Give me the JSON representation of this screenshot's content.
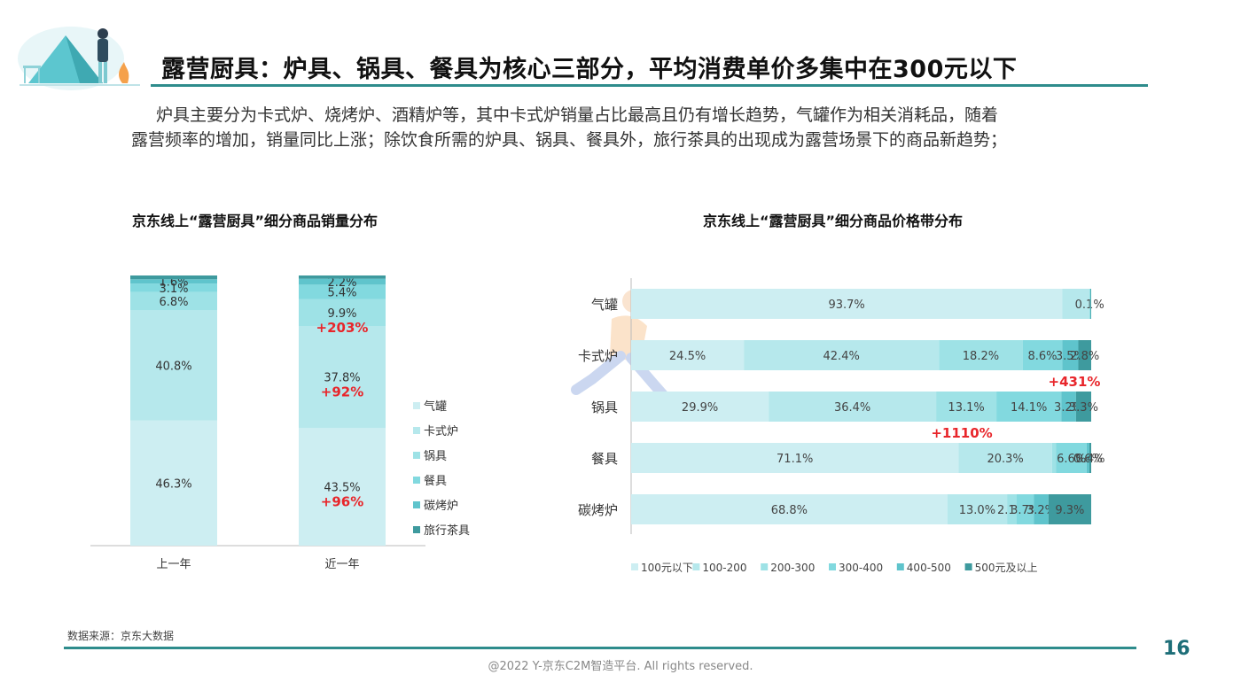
{
  "header": {
    "title": "露营厨具：炉具、锅具、餐具为核心三部分，平均消费单价多集中在300元以下",
    "paragraph_line1": "炉具主要分为卡式炉、烧烤炉、酒精炉等，其中卡式炉销量占比最高且仍有增长趋势，气罐作为相关消耗品，随着",
    "paragraph_line2": "露营频率的增加，销量同比上涨；除饮食所需的炉具、锅具、餐具外，旅行茶具的出现成为露营场景下的商品新趋势；"
  },
  "colors": {
    "accent": "#2e8c8c",
    "highlight_red": "#e8262b",
    "segments": [
      "#cdeef2",
      "#b6e8ec",
      "#9ee2e6",
      "#82d9df",
      "#5fc4cc",
      "#3e9a9e"
    ]
  },
  "footer": {
    "source": "数据来源：京东大数据",
    "copyright": "@2022 Y-京东C2M智造平台. All rights reserved.",
    "page_number": "16"
  },
  "chart_data": [
    {
      "type": "bar",
      "stacked": true,
      "orientation": "vertical",
      "title": "京东线上“露营厨具”细分商品销量分布",
      "categories": [
        "上一年",
        "近一年"
      ],
      "ylim": [
        0,
        100
      ],
      "series": [
        {
          "name": "气罐",
          "values": [
            46.3,
            43.5
          ]
        },
        {
          "name": "卡式炉",
          "values": [
            40.8,
            37.8
          ]
        },
        {
          "name": "锅具",
          "values": [
            6.8,
            9.9
          ]
        },
        {
          "name": "餐具",
          "values": [
            3.1,
            5.4
          ]
        },
        {
          "name": "碳烤炉",
          "values": [
            1.6,
            2.2
          ]
        },
        {
          "name": "旅行茶具",
          "values": [
            1.4,
            1.2
          ]
        }
      ],
      "data_labels": [
        [
          "46.3%",
          "40.8%",
          "6.8%",
          "3.1%",
          "1.6%"
        ],
        [
          "43.5%",
          "37.8%",
          "9.9%",
          "5.4%",
          "2.2%"
        ]
      ],
      "annotations": [
        {
          "category": "近一年",
          "series": "气罐",
          "text": "+96%"
        },
        {
          "category": "近一年",
          "series": "卡式炉",
          "text": "+92%"
        },
        {
          "category": "近一年",
          "series": "锅具",
          "text": "+203%"
        }
      ],
      "legend_position": "right"
    },
    {
      "type": "bar",
      "stacked": true,
      "orientation": "horizontal",
      "title": "京东线上“露营厨具”细分商品价格带分布",
      "categories": [
        "气罐",
        "卡式炉",
        "锅具",
        "餐具",
        "碳烤炉"
      ],
      "xlim": [
        0,
        100
      ],
      "series": [
        {
          "name": "100元以下",
          "values": [
            93.7,
            24.5,
            29.9,
            71.1,
            68.8
          ]
        },
        {
          "name": "100-200",
          "values": [
            5.9,
            42.4,
            36.4,
            20.3,
            13.0
          ]
        },
        {
          "name": "200-300",
          "values": [
            0.1,
            18.2,
            13.1,
            0.9,
            2.1
          ]
        },
        {
          "name": "300-400",
          "values": [
            0.1,
            8.6,
            14.1,
            6.6,
            3.7
          ]
        },
        {
          "name": "400-500",
          "values": [
            0.1,
            3.5,
            3.2,
            0.6,
            3.2
          ]
        },
        {
          "name": "500元及以上",
          "values": [
            0.1,
            2.8,
            3.3,
            0.4,
            9.3
          ]
        }
      ],
      "data_labels": [
        [
          "93.7%",
          "",
          "0.1%",
          "",
          "",
          ""
        ],
        [
          "24.5%",
          "42.4%",
          "18.2%",
          "8.6%",
          "3.5%",
          "2.8%"
        ],
        [
          "29.9%",
          "36.4%",
          "13.1%",
          "14.1%",
          "3.2%",
          "3.3%"
        ],
        [
          "71.1%",
          "20.3%",
          "",
          "6.6%",
          "0.6%",
          "0.4%"
        ],
        [
          "68.8%",
          "13.0%",
          "2.1%",
          "3.7%",
          "3.2%",
          "9.3%"
        ]
      ],
      "annotations": [
        {
          "category": "卡式炉",
          "text": "+431%"
        },
        {
          "category": "锅具",
          "text": "+1110%"
        }
      ],
      "legend_position": "bottom"
    }
  ]
}
